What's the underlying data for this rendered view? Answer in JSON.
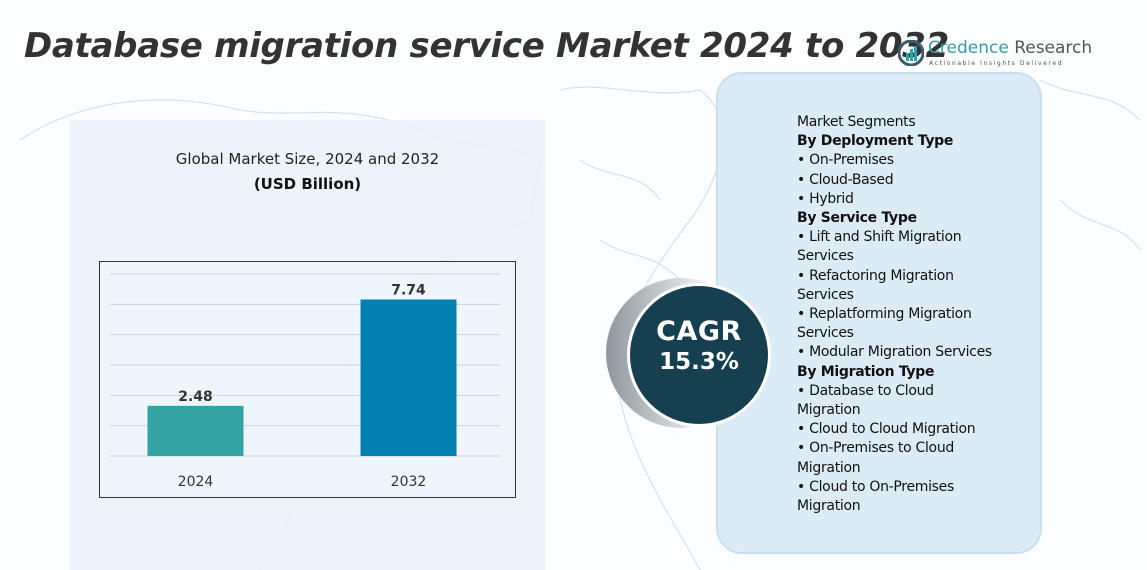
{
  "title": "Database migration service Market 2024 to 2032",
  "logo": {
    "name_part1": "Credence",
    "name_part2": "Research",
    "tagline": "Actionable Insights Delivered"
  },
  "chart_data": {
    "type": "bar",
    "title": "Global Market Size, 2024 and 2032",
    "subtitle": "(USD Billion)",
    "categories": [
      "2024",
      "2032"
    ],
    "values": [
      2.48,
      7.74
    ],
    "data_labels": [
      "2.48",
      "7.74"
    ],
    "colors": [
      "#35a3a3",
      "#0580b2"
    ],
    "ylim": [
      0,
      9
    ],
    "grid": true,
    "legend": "none"
  },
  "cagr": {
    "label": "CAGR",
    "value": "15.3%"
  },
  "segments": {
    "heading": "Market Segments",
    "lines": [
      {
        "text": "By Deployment Type",
        "heading": true
      },
      {
        "text": "•  On-Premises"
      },
      {
        "text": "•  Cloud-Based"
      },
      {
        "text": "•  Hybrid"
      },
      {
        "text": "By Service Type",
        "heading": true
      },
      {
        "text": "•  Lift and Shift Migration"
      },
      {
        "text": "Services"
      },
      {
        "text": "•   Refactoring Migration"
      },
      {
        "text": "Services"
      },
      {
        "text": "•  Replatforming Migration"
      },
      {
        "text": "Services"
      },
      {
        "text": "•  Modular Migration Services"
      },
      {
        "text": "By Migration Type",
        "heading": true
      },
      {
        "text": "•  Database to Cloud"
      },
      {
        "text": "Migration"
      },
      {
        "text": "•  Cloud to Cloud Migration"
      },
      {
        "text": "•  On-Premises to Cloud"
      },
      {
        "text": "Migration"
      },
      {
        "text": "•  Cloud to On-Premises"
      },
      {
        "text": "Migration"
      }
    ]
  },
  "colors": {
    "cagr_circle": "#163f4f",
    "panel": "#dcecf6",
    "accent": "#3a9aa8"
  }
}
